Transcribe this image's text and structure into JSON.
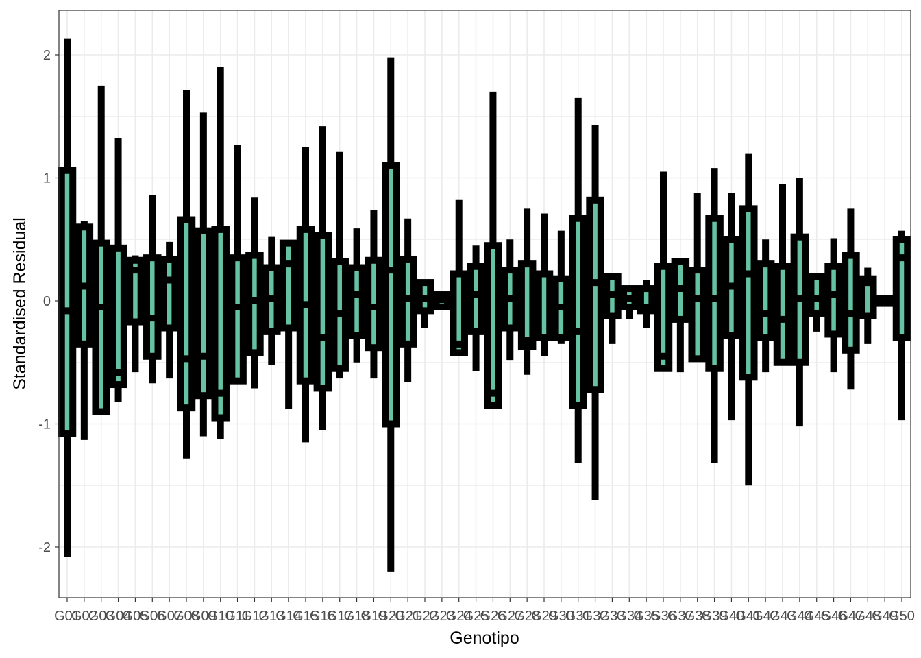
{
  "chart_data": {
    "type": "boxplot",
    "title": "",
    "xlabel": "Genotipo",
    "ylabel": "Standardised Residual",
    "ylim": [
      -2.4,
      2.35
    ],
    "y_ticks": [
      -2,
      -1,
      0,
      1,
      2
    ],
    "y_tick_labels": [
      "-2",
      "-1",
      "0",
      "1",
      "2"
    ],
    "grid": true,
    "legend": "none",
    "colors": {
      "box_fill": "#66c2a5",
      "box_outline": "#000000",
      "grid": "#ebebeb",
      "panel_border": "#333333"
    },
    "categories": [
      "G01",
      "G02",
      "G03",
      "G04",
      "G05",
      "G06",
      "G07",
      "G08",
      "G09",
      "G10",
      "G11",
      "G12",
      "G13",
      "G14",
      "G15",
      "G16",
      "G17",
      "G18",
      "G19",
      "G20",
      "G21",
      "G22",
      "G23",
      "G24",
      "G25",
      "G26",
      "G27",
      "G28",
      "G29",
      "G30",
      "G31",
      "G32",
      "G33",
      "G34",
      "G35",
      "G36",
      "G37",
      "G38",
      "G39",
      "G40",
      "G41",
      "G42",
      "G43",
      "G44",
      "G45",
      "G46",
      "G47",
      "G48",
      "G49",
      "G50"
    ],
    "boxes": [
      {
        "min": -2.08,
        "q1": -1.08,
        "median": -0.08,
        "q3": 1.06,
        "max": 2.13
      },
      {
        "min": -1.13,
        "q1": -0.35,
        "median": 0.12,
        "q3": 0.6,
        "max": 0.65
      },
      {
        "min": -0.92,
        "q1": -0.9,
        "median": -0.05,
        "q3": 0.47,
        "max": 1.75
      },
      {
        "min": -0.82,
        "q1": -0.68,
        "median": -0.58,
        "q3": 0.43,
        "max": 1.32
      },
      {
        "min": -0.58,
        "q1": -0.17,
        "median": 0.25,
        "q3": 0.33,
        "max": 0.37
      },
      {
        "min": -0.67,
        "q1": -0.45,
        "median": -0.14,
        "q3": 0.35,
        "max": 0.86
      },
      {
        "min": -0.63,
        "q1": -0.22,
        "median": 0.17,
        "q3": 0.34,
        "max": 0.48
      },
      {
        "min": -1.28,
        "q1": -0.87,
        "median": -0.47,
        "q3": 0.66,
        "max": 1.71
      },
      {
        "min": -1.1,
        "q1": -0.77,
        "median": -0.45,
        "q3": 0.57,
        "max": 1.53
      },
      {
        "min": -1.12,
        "q1": -0.95,
        "median": -0.75,
        "q3": 0.58,
        "max": 1.9
      },
      {
        "min": -0.65,
        "q1": -0.65,
        "median": -0.05,
        "q3": 0.35,
        "max": 1.27
      },
      {
        "min": -0.71,
        "q1": -0.42,
        "median": 0.0,
        "q3": 0.37,
        "max": 0.84
      },
      {
        "min": -0.52,
        "q1": -0.25,
        "median": 0.02,
        "q3": 0.27,
        "max": 0.52
      },
      {
        "min": -0.88,
        "q1": -0.22,
        "median": 0.3,
        "q3": 0.47,
        "max": 0.47
      },
      {
        "min": -1.15,
        "q1": -0.65,
        "median": -0.03,
        "q3": 0.58,
        "max": 1.25
      },
      {
        "min": -1.05,
        "q1": -0.71,
        "median": -0.3,
        "q3": 0.53,
        "max": 1.42
      },
      {
        "min": -0.63,
        "q1": -0.55,
        "median": -0.1,
        "q3": 0.32,
        "max": 1.21
      },
      {
        "min": -0.5,
        "q1": -0.28,
        "median": 0.05,
        "q3": 0.27,
        "max": 0.59
      },
      {
        "min": -0.63,
        "q1": -0.38,
        "median": -0.05,
        "q3": 0.33,
        "max": 0.74
      },
      {
        "min": -2.2,
        "q1": -1.0,
        "median": 0.25,
        "q3": 1.1,
        "max": 1.98
      },
      {
        "min": -0.66,
        "q1": -0.35,
        "median": 0.02,
        "q3": 0.34,
        "max": 0.67
      },
      {
        "min": -0.22,
        "q1": -0.08,
        "median": 0.02,
        "q3": 0.15,
        "max": 0.15
      },
      {
        "min": -0.05,
        "q1": -0.05,
        "median": 0.01,
        "q3": 0.05,
        "max": 0.05
      },
      {
        "min": -0.45,
        "q1": -0.42,
        "median": -0.35,
        "q3": 0.22,
        "max": 0.82
      },
      {
        "min": -0.57,
        "q1": -0.25,
        "median": 0.05,
        "q3": 0.28,
        "max": 0.45
      },
      {
        "min": -0.87,
        "q1": -0.85,
        "median": -0.75,
        "q3": 0.45,
        "max": 1.7
      },
      {
        "min": -0.48,
        "q1": -0.22,
        "median": 0.02,
        "q3": 0.25,
        "max": 0.5
      },
      {
        "min": -0.6,
        "q1": -0.37,
        "median": -0.32,
        "q3": 0.3,
        "max": 0.75
      },
      {
        "min": -0.45,
        "q1": -0.3,
        "median": -0.3,
        "q3": 0.22,
        "max": 0.71
      },
      {
        "min": -0.35,
        "q1": -0.3,
        "median": -0.05,
        "q3": 0.18,
        "max": 0.57
      },
      {
        "min": -1.32,
        "q1": -0.85,
        "median": -0.25,
        "q3": 0.67,
        "max": 1.65
      },
      {
        "min": -1.62,
        "q1": -0.72,
        "median": 0.15,
        "q3": 0.82,
        "max": 1.43
      },
      {
        "min": -0.35,
        "q1": -0.12,
        "median": 0.05,
        "q3": 0.2,
        "max": 0.2
      },
      {
        "min": -0.15,
        "q1": -0.05,
        "median": 0.02,
        "q3": 0.1,
        "max": 0.1
      },
      {
        "min": -0.22,
        "q1": -0.08,
        "median": -0.05,
        "q3": 0.1,
        "max": 0.17
      },
      {
        "min": -0.55,
        "q1": -0.55,
        "median": -0.45,
        "q3": 0.28,
        "max": 1.05
      },
      {
        "min": -0.58,
        "q1": -0.15,
        "median": 0.1,
        "q3": 0.32,
        "max": 0.32
      },
      {
        "min": -0.48,
        "q1": -0.47,
        "median": 0.02,
        "q3": 0.25,
        "max": 0.88
      },
      {
        "min": -1.32,
        "q1": -0.55,
        "median": 0.02,
        "q3": 0.67,
        "max": 1.08
      },
      {
        "min": -0.97,
        "q1": -0.28,
        "median": 0.12,
        "q3": 0.5,
        "max": 0.88
      },
      {
        "min": -1.5,
        "q1": -0.62,
        "median": 0.22,
        "q3": 0.75,
        "max": 1.2
      },
      {
        "min": -0.58,
        "q1": -0.3,
        "median": -0.1,
        "q3": 0.3,
        "max": 0.5
      },
      {
        "min": -0.5,
        "q1": -0.5,
        "median": -0.15,
        "q3": 0.28,
        "max": 0.95
      },
      {
        "min": -1.02,
        "q1": -0.5,
        "median": 0.02,
        "q3": 0.52,
        "max": 1.0
      },
      {
        "min": -0.25,
        "q1": -0.1,
        "median": 0.02,
        "q3": 0.2,
        "max": 0.2
      },
      {
        "min": -0.58,
        "q1": -0.27,
        "median": 0.05,
        "q3": 0.28,
        "max": 0.51
      },
      {
        "min": -0.72,
        "q1": -0.4,
        "median": -0.1,
        "q3": 0.37,
        "max": 0.75
      },
      {
        "min": -0.35,
        "q1": -0.12,
        "median": 0.15,
        "q3": 0.18,
        "max": 0.27
      },
      {
        "min": -0.02,
        "q1": -0.02,
        "median": 0.0,
        "q3": 0.02,
        "max": 0.02
      },
      {
        "min": -0.97,
        "q1": -0.3,
        "median": 0.35,
        "q3": 0.5,
        "max": 0.57
      }
    ]
  }
}
